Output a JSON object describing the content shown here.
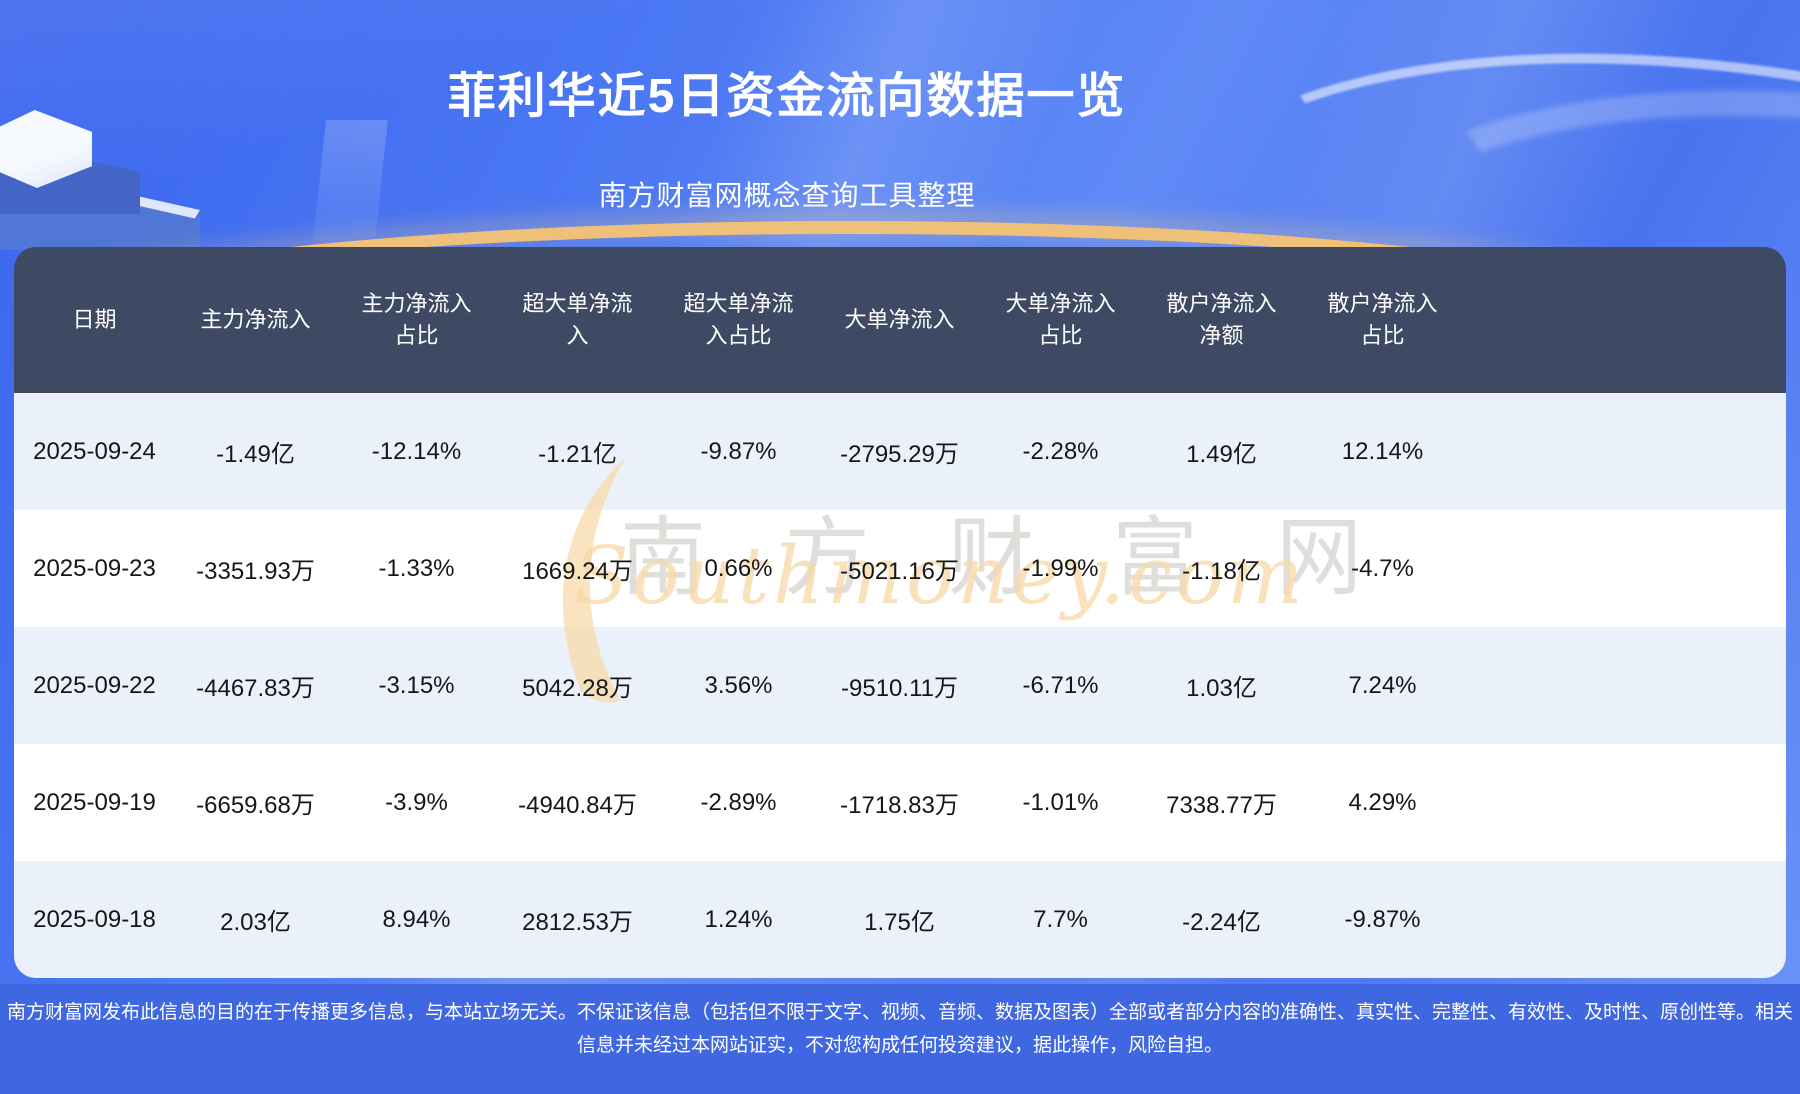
{
  "header": {
    "title": "菲利华近5日资金流向数据一览",
    "subtitle": "南方财富网概念查询工具整理"
  },
  "table": {
    "columns": [
      "日期",
      "主力净流入",
      "主力净流入\n占比",
      "超大单净流\n入",
      "超大单净流\n入占比",
      "大单净流入",
      "大单净流入\n占比",
      "散户净流入\n净额",
      "散户净流入\n占比"
    ],
    "rows": [
      [
        "2025-09-24",
        "-1.49亿",
        "-12.14%",
        "-1.21亿",
        "-9.87%",
        "-2795.29万",
        "-2.28%",
        "1.49亿",
        "12.14%"
      ],
      [
        "2025-09-23",
        "-3351.93万",
        "-1.33%",
        "1669.24万",
        "0.66%",
        "-5021.16万",
        "-1.99%",
        "-1.18亿",
        "-4.7%"
      ],
      [
        "2025-09-22",
        "-4467.83万",
        "-3.15%",
        "5042.28万",
        "3.56%",
        "-9510.11万",
        "-6.71%",
        "1.03亿",
        "7.24%"
      ],
      [
        "2025-09-19",
        "-6659.68万",
        "-3.9%",
        "-4940.84万",
        "-2.89%",
        "-1718.83万",
        "-1.01%",
        "7338.77万",
        "4.29%"
      ],
      [
        "2025-09-18",
        "2.03亿",
        "8.94%",
        "2812.53万",
        "1.24%",
        "1.75亿",
        "7.7%",
        "-2.24亿",
        "-9.87%"
      ]
    ]
  },
  "chart_data": {
    "type": "table",
    "title": "菲利华近5日资金流向数据一览",
    "subtitle": "南方财富网概念查询工具整理",
    "categories": [
      "2025-09-24",
      "2025-09-23",
      "2025-09-22",
      "2025-09-19",
      "2025-09-18"
    ],
    "series": [
      {
        "name": "主力净流入",
        "values": [
          "-1.49亿",
          "-3351.93万",
          "-4467.83万",
          "-6659.68万",
          "2.03亿"
        ]
      },
      {
        "name": "主力净流入占比",
        "values": [
          "-12.14%",
          "-1.33%",
          "-3.15%",
          "-3.9%",
          "8.94%"
        ]
      },
      {
        "name": "超大单净流入",
        "values": [
          "-1.21亿",
          "1669.24万",
          "5042.28万",
          "-4940.84万",
          "2812.53万"
        ]
      },
      {
        "name": "超大单净流入占比",
        "values": [
          "-9.87%",
          "0.66%",
          "3.56%",
          "-2.89%",
          "1.24%"
        ]
      },
      {
        "name": "大单净流入",
        "values": [
          "-2795.29万",
          "-5021.16万",
          "-9510.11万",
          "-1718.83万",
          "1.75亿"
        ]
      },
      {
        "name": "大单净流入占比",
        "values": [
          "-2.28%",
          "-1.99%",
          "-6.71%",
          "-1.01%",
          "7.7%"
        ]
      },
      {
        "name": "散户净流入净额",
        "values": [
          "1.49亿",
          "-1.18亿",
          "1.03亿",
          "7338.77万",
          "-2.24亿"
        ]
      },
      {
        "name": "散户净流入占比",
        "values": [
          "12.14%",
          "-4.7%",
          "7.24%",
          "4.29%",
          "-9.87%"
        ]
      }
    ]
  },
  "watermark": {
    "cn": "南方财富网",
    "en": "Southmoney.com"
  },
  "footer": {
    "disclaimer": "南方财富网发布此信息的目的在于传播更多信息，与本站立场无关。不保证该信息（包括但不限于文字、视频、音频、数据及图表）全部或者部分内容的准确性、真实性、完整性、有效性、及时性、原创性等。相关信息并未经过本网站证实，不对您构成任何投资建议，据此操作，风险自担。"
  },
  "colors": {
    "header_bg": "#3e4a63",
    "row_alt_bg": "#ebf1fb",
    "row_bg": "#ffffff",
    "footer_bg": "#4067e2",
    "accent_gold": "#eec07a",
    "background_blue": "#4a77f3"
  }
}
